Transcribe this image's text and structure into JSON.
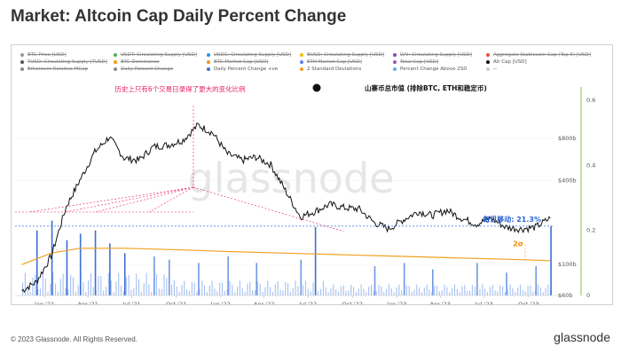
{
  "title": "Market: Altcoin Cap Daily Percent Change",
  "legend": [
    {
      "label": "BTC Price [USD]",
      "color": "#999999",
      "enabled": false
    },
    {
      "label": "USDT: Circulating Supply [USD]",
      "color": "#4caf50",
      "enabled": false
    },
    {
      "label": "USDC: Circulating Supply [USD]",
      "color": "#2196f3",
      "enabled": false
    },
    {
      "label": "BUSD: Circulating Supply [USD]",
      "color": "#f0b90b",
      "enabled": false
    },
    {
      "label": "DAI: Circulating Supply [USD]",
      "color": "#8e44ad",
      "enabled": false
    },
    {
      "label": "Aggregate Stablecoin Cap (Top 5) [USD]",
      "color": "#e74c3c",
      "enabled": false
    },
    {
      "label": "TUSD: Circulating Supply [TUSD]",
      "color": "#555555",
      "enabled": false
    },
    {
      "label": "BTC Dominance",
      "color": "#f39c12",
      "enabled": false
    },
    {
      "label": "BTC Market Cap [USD]",
      "color": "#f7931a",
      "enabled": false
    },
    {
      "label": "ETH Market Cap [USD]",
      "color": "#627eea",
      "enabled": false
    },
    {
      "label": "Total Cap [USD]",
      "color": "#9b59b6",
      "enabled": false
    },
    {
      "label": "Alt Cap [USD]",
      "color": "#111111",
      "enabled": true
    },
    {
      "label": "Ethereum Relative MCap",
      "color": "#888888",
      "enabled": false
    },
    {
      "label": "Daily Percent Change",
      "color": "#7f8c8d",
      "enabled": false
    },
    {
      "label": "Daily Percent Change +ve",
      "color": "#3b6fd8",
      "enabled": true
    },
    {
      "label": "2 Standard Deviations",
      "color": "#f0a020",
      "enabled": true
    },
    {
      "label": "Percent Change Above 2SD",
      "color": "#5dade2",
      "enabled": true
    },
    {
      "label": "--",
      "color": "#cccccc",
      "enabled": true
    }
  ],
  "annotations": {
    "peak_note": "历史上只有6个交易日录得了更大的变化比例",
    "series_label": "山寨币总市值 (排除BTC, ETH和稳定币)",
    "latest_move": "每日移动: 21.3%",
    "sd_label": "2σ"
  },
  "watermark": "glassnode",
  "footer": {
    "copyright": "© 2023 Glassnode. All Rights Reserved.",
    "brand": "glassnode"
  },
  "chart_data": {
    "type": "line",
    "title": "Market: Altcoin Cap Daily Percent Change",
    "x_ticks": [
      "Jan '21",
      "Apr '21",
      "Jul '21",
      "Oct '21",
      "Jan '22",
      "Apr '22",
      "Jul '22",
      "Oct '22",
      "Jan '23",
      "Apr '23",
      "Jul '23",
      "Oct '23"
    ],
    "y_left_ticks": [
      "$60b",
      "$100b",
      "$400b",
      "$800b"
    ],
    "y_left_scale": "log",
    "y_right_ticks": [
      "0",
      "0.2",
      "0.4",
      "0.6"
    ],
    "y_right_range": [
      0,
      0.6
    ],
    "series": [
      {
        "name": "Alt Cap [USD]",
        "axis": "left",
        "color": "#111111",
        "x": [
          "2020-11",
          "2020-12",
          "2021-01",
          "2021-02",
          "2021-03",
          "2021-04",
          "2021-05",
          "2021-06",
          "2021-07",
          "2021-08",
          "2021-09",
          "2021-10",
          "2021-11",
          "2021-12",
          "2022-01",
          "2022-02",
          "2022-03",
          "2022-04",
          "2022-05",
          "2022-06",
          "2022-07",
          "2022-08",
          "2022-09",
          "2022-10",
          "2022-11",
          "2022-12",
          "2023-01",
          "2023-02",
          "2023-03",
          "2023-04",
          "2023-05",
          "2023-06",
          "2023-07",
          "2023-08",
          "2023-09",
          "2023-10",
          "2023-11"
        ],
        "values": [
          65,
          75,
          115,
          260,
          400,
          640,
          820,
          580,
          560,
          700,
          720,
          780,
          1000,
          880,
          620,
          560,
          590,
          520,
          340,
          220,
          240,
          270,
          255,
          250,
          200,
          180,
          210,
          240,
          225,
          245,
          215,
          195,
          215,
          185,
          180,
          185,
          215
        ]
      },
      {
        "name": "2 Standard Deviations",
        "axis": "right",
        "color": "#f0a020",
        "x": [
          "2020-11",
          "2021-01",
          "2021-03",
          "2021-06",
          "2021-10",
          "2022-01",
          "2022-05",
          "2022-09",
          "2023-01",
          "2023-05",
          "2023-09",
          "2023-11"
        ],
        "values": [
          0.095,
          0.13,
          0.145,
          0.145,
          0.14,
          0.135,
          0.13,
          0.125,
          0.12,
          0.115,
          0.11,
          0.107
        ]
      },
      {
        "name": "Daily Percent Change +ve",
        "axis": "right",
        "color": "#3b6fd8",
        "type": "bar",
        "x": [
          "2020-12",
          "2021-01",
          "2021-02",
          "2021-03",
          "2021-04",
          "2021-05",
          "2021-06",
          "2021-08",
          "2021-09",
          "2021-11",
          "2022-01",
          "2022-03",
          "2022-06",
          "2022-07",
          "2022-11",
          "2023-01",
          "2023-03",
          "2023-06",
          "2023-08",
          "2023-10",
          "2023-11"
        ],
        "values": [
          0.2,
          0.23,
          0.17,
          0.19,
          0.2,
          0.16,
          0.13,
          0.12,
          0.11,
          0.1,
          0.12,
          0.1,
          0.11,
          0.21,
          0.09,
          0.1,
          0.08,
          0.1,
          0.07,
          0.09,
          0.213
        ]
      }
    ]
  }
}
